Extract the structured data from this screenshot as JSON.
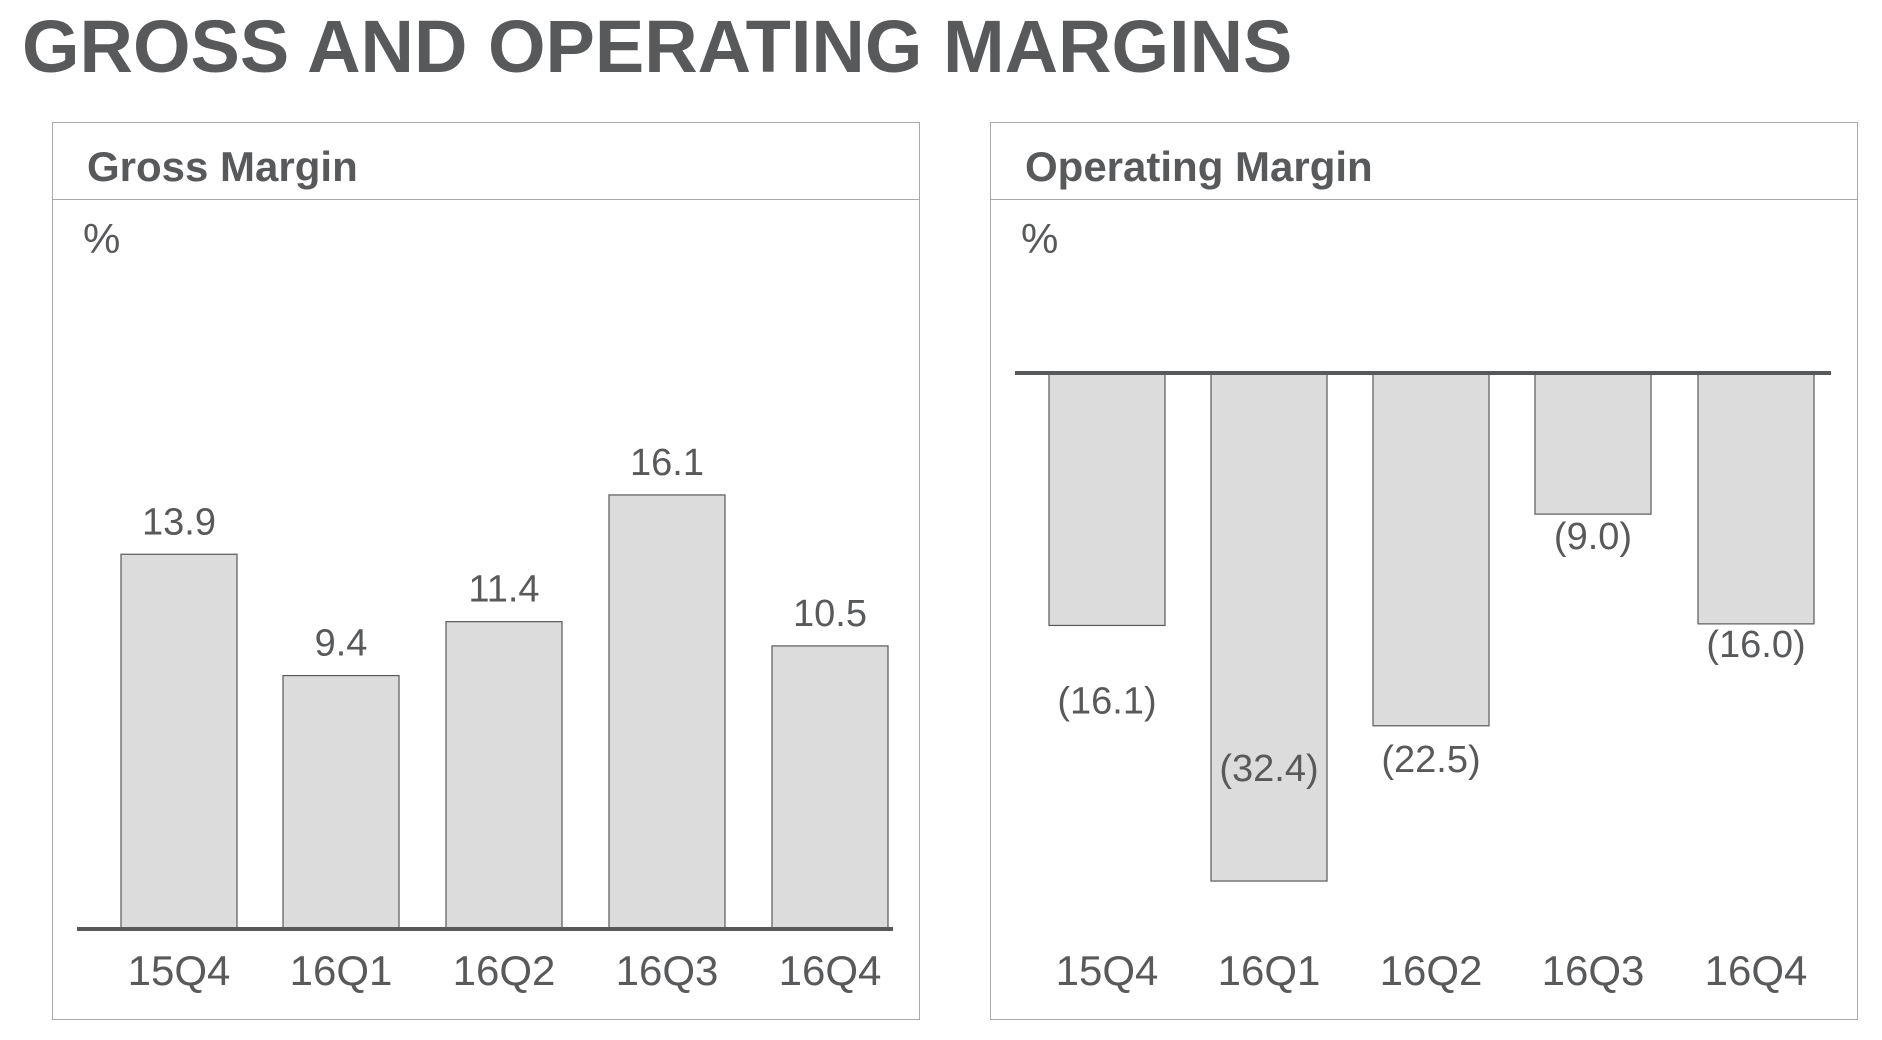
{
  "page": {
    "title": "GROSS AND OPERATING MARGINS"
  },
  "colors": {
    "bar_fill": "#dcdcdc",
    "bar_stroke": "#58595b",
    "text": "#58595b",
    "axis": "#58595b",
    "border": "#a7a9ac"
  },
  "chart_data": [
    {
      "type": "bar",
      "title": "Gross Margin",
      "ylabel": "%",
      "categories": [
        "15Q4",
        "16Q1",
        "16Q2",
        "16Q3",
        "16Q4"
      ],
      "values": [
        13.9,
        9.4,
        11.4,
        16.1,
        10.5
      ],
      "value_labels": [
        "13.9",
        "9.4",
        "11.4",
        "16.1",
        "10.5"
      ],
      "ylim": [
        0,
        20
      ],
      "grid": false,
      "legend": "none"
    },
    {
      "type": "bar",
      "title": "Operating Margin",
      "ylabel": "%",
      "categories": [
        "15Q4",
        "16Q1",
        "16Q2",
        "16Q3",
        "16Q4"
      ],
      "values": [
        -16.1,
        -32.4,
        -22.5,
        -9.0,
        -16.0
      ],
      "value_labels": [
        "(16.1)",
        "(32.4)",
        "(22.5)",
        "(9.0)",
        "(16.0)"
      ],
      "ylim": [
        -35,
        0
      ],
      "grid": false,
      "legend": "none"
    }
  ]
}
